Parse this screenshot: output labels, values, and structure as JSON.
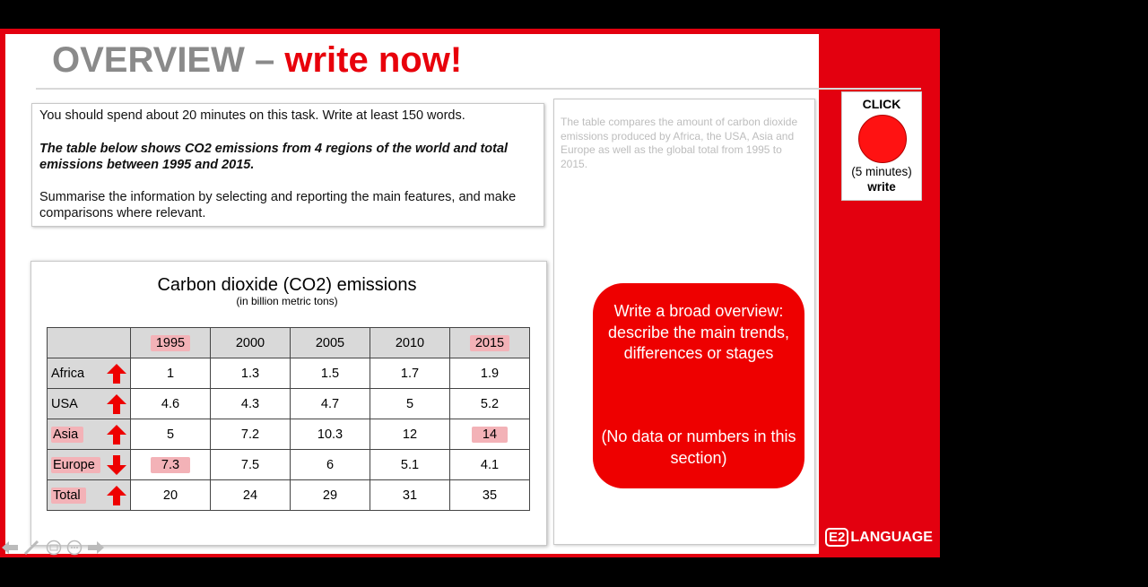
{
  "slide": {
    "title_gray": "OVERVIEW –",
    "title_red": "write now!"
  },
  "task": {
    "line1": "You should spend about 20 minutes on this task. Write at least 150 words.",
    "line2": "The table below shows CO2 emissions from 4 regions of the world and total emissions between 1995 and 2015.",
    "line3": "Summarise the information by selecting and reporting the main features, and make comparisons where relevant."
  },
  "answer": {
    "text": "The table compares the amount of carbon dioxide emissions produced by Africa, the USA, Asia and Europe as well as the global total from 1995 to 2015."
  },
  "click_box": {
    "label": "CLICK",
    "duration": "(5 minutes)",
    "action": "write",
    "button_color": "#ff1212"
  },
  "chart_data": {
    "type": "table",
    "title": "Carbon dioxide (CO2) emissions",
    "subtitle": "(in billion metric tons)",
    "columns": [
      "1995",
      "2000",
      "2005",
      "2010",
      "2015"
    ],
    "rows": [
      {
        "label": "Africa",
        "trend": "up",
        "values": [
          "1",
          "1.3",
          "1.5",
          "1.7",
          "1.9"
        ]
      },
      {
        "label": "USA",
        "trend": "up",
        "values": [
          "4.6",
          "4.3",
          "4.7",
          "5",
          "5.2"
        ]
      },
      {
        "label": "Asia",
        "trend": "up",
        "values": [
          "5",
          "7.2",
          "10.3",
          "12",
          "14"
        ]
      },
      {
        "label": "Europe",
        "trend": "down",
        "values": [
          "7.3",
          "7.5",
          "6",
          "5.1",
          "4.1"
        ]
      },
      {
        "label": "Total",
        "trend": "up",
        "values": [
          "20",
          "24",
          "29",
          "31",
          "35"
        ]
      }
    ],
    "highlighted_columns": [
      "1995",
      "2015"
    ],
    "highlighted_row_labels": [
      "Asia",
      "Europe",
      "Total"
    ],
    "highlighted_cells": [
      "Asia-2015",
      "Europe-1995"
    ],
    "arrow_color": "#ee0000",
    "highlight_color": "#f3b2b7"
  },
  "bubble": {
    "instruction": "Write a broad overview: describe the main trends, differences or stages",
    "note": "(No data or numbers in this section)"
  },
  "logo": {
    "mark": "E2",
    "name": "LANGUAGE"
  },
  "nav_icons": [
    "back-arrow-icon",
    "pen-icon",
    "slides-icon",
    "more-icon",
    "forward-arrow-icon"
  ]
}
